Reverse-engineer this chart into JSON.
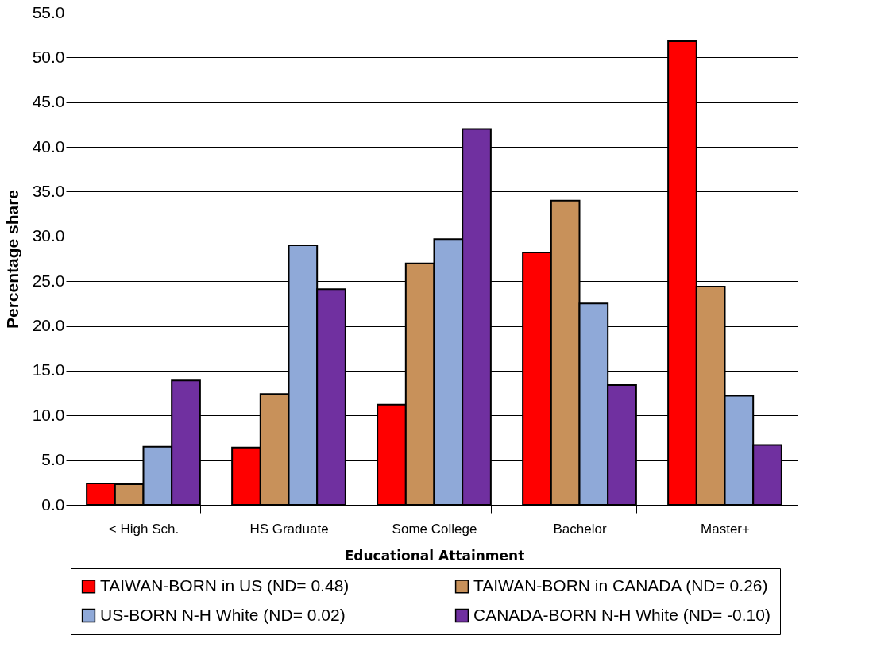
{
  "chart_data": {
    "type": "bar",
    "xlabel": "Educational Attainment",
    "ylabel": "Percentage share",
    "categories": [
      "< High Sch.",
      "HS Graduate",
      "Some College",
      "Bachelor",
      "Master+"
    ],
    "series": [
      {
        "name": "TAIWAN-BORN in US (ND= 0.48)",
        "color": "#ff0000",
        "values": [
          2.4,
          6.4,
          11.2,
          28.2,
          51.8
        ]
      },
      {
        "name": "TAIWAN-BORN in CANADA (ND= 0.26)",
        "color": "#c8915a",
        "values": [
          2.3,
          12.4,
          27.0,
          34.0,
          24.4
        ]
      },
      {
        "name": "US-BORN N-H White (ND= 0.02)",
        "color": "#8fa9d8",
        "values": [
          6.5,
          29.0,
          29.7,
          22.5,
          12.2
        ]
      },
      {
        "name": "CANADA-BORN N-H White (ND= -0.10)",
        "color": "#7030a0",
        "values": [
          13.9,
          24.1,
          42.0,
          13.4,
          6.7
        ]
      }
    ],
    "ylim": [
      0,
      55
    ],
    "yticks": [
      {
        "value": 0,
        "label": "0.0"
      },
      {
        "value": 5,
        "label": "5.0"
      },
      {
        "value": 10,
        "label": "10.0"
      },
      {
        "value": 15,
        "label": "15.0"
      },
      {
        "value": 20,
        "label": "20.0"
      },
      {
        "value": 25,
        "label": "25.0"
      },
      {
        "value": 30,
        "label": "30.0"
      },
      {
        "value": 35,
        "label": "35.0"
      },
      {
        "value": 40,
        "label": "40.0"
      },
      {
        "value": 45,
        "label": "45.0"
      },
      {
        "value": 50,
        "label": "50.0"
      },
      {
        "value": 55,
        "label": "55.0"
      }
    ],
    "grid": "y",
    "legend": "bottom"
  }
}
